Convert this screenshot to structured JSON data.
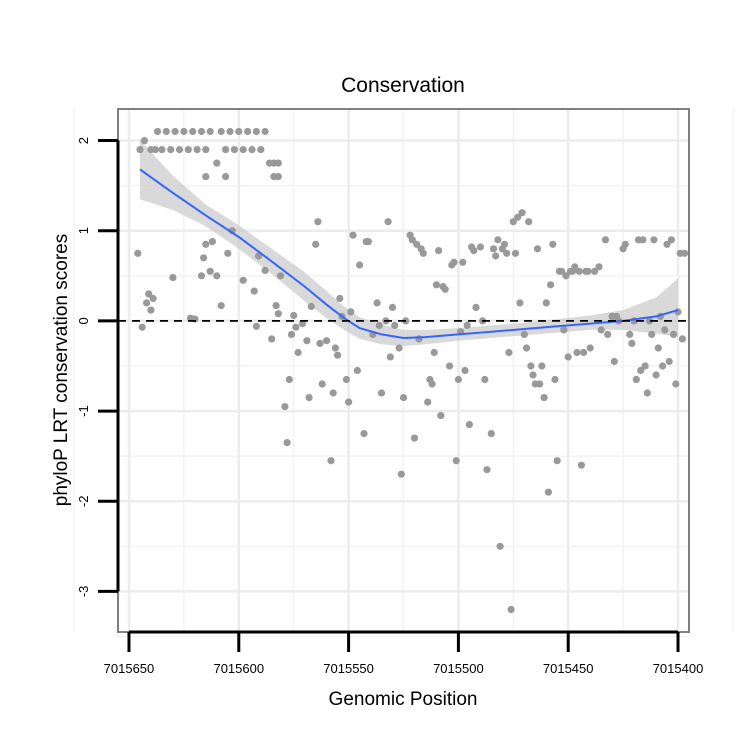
{
  "chart_data": {
    "type": "scatter",
    "title": "Conservation",
    "xlabel": "Genomic Position",
    "ylabel": "phyloP LRT conservation scores",
    "xlim": [
      7015655,
      7015395
    ],
    "ylim": [
      -3.45,
      2.35
    ],
    "x_reversed": true,
    "xticks": [
      7015650,
      7015600,
      7015550,
      7015500,
      7015450,
      7015400
    ],
    "xtick_labels": [
      "7015650",
      "7015600",
      "7015550",
      "7015500",
      "7015450",
      "7015400"
    ],
    "yticks": [
      2,
      1,
      0,
      -1,
      -2,
      -3
    ],
    "ytick_labels": [
      "2",
      "1",
      "0",
      "-1",
      "-2",
      "-3"
    ],
    "grid": true,
    "legend": "none",
    "reference_line": {
      "y": 0,
      "style": "dashed",
      "color": "#000000"
    },
    "points_color": "#999999",
    "smooth_color": "#3366FF",
    "band_color": "#cccccc",
    "points": [
      [
        7015645,
        1.9
      ],
      [
        7015643,
        2.0
      ],
      [
        7015640,
        1.9
      ],
      [
        7015638,
        1.9
      ],
      [
        7015637,
        2.1
      ],
      [
        7015635,
        1.9
      ],
      [
        7015633,
        2.1
      ],
      [
        7015631,
        1.9
      ],
      [
        7015629,
        2.1
      ],
      [
        7015627,
        1.9
      ],
      [
        7015625,
        2.1
      ],
      [
        7015623,
        1.9
      ],
      [
        7015621,
        2.1
      ],
      [
        7015619,
        1.9
      ],
      [
        7015617,
        2.1
      ],
      [
        7015615,
        1.9
      ],
      [
        7015613,
        2.1
      ],
      [
        7015608,
        2.1
      ],
      [
        7015606,
        1.9
      ],
      [
        7015604,
        2.1
      ],
      [
        7015602,
        1.9
      ],
      [
        7015600,
        2.1
      ],
      [
        7015598,
        1.9
      ],
      [
        7015596,
        2.1
      ],
      [
        7015594,
        1.9
      ],
      [
        7015592,
        2.1
      ],
      [
        7015590,
        1.9
      ],
      [
        7015588,
        2.1
      ],
      [
        7015586,
        1.75
      ],
      [
        7015584,
        1.75
      ],
      [
        7015582,
        1.75
      ],
      [
        7015610,
        1.75
      ],
      [
        7015584,
        1.6
      ],
      [
        7015582,
        1.6
      ],
      [
        7015606,
        1.6
      ],
      [
        7015615,
        1.6
      ],
      [
        7015646,
        0.75
      ],
      [
        7015644,
        -0.07
      ],
      [
        7015642,
        0.2
      ],
      [
        7015641,
        0.3
      ],
      [
        7015640,
        0.12
      ],
      [
        7015639,
        0.25
      ],
      [
        7015630,
        0.48
      ],
      [
        7015622,
        0.03
      ],
      [
        7015620,
        0.02
      ],
      [
        7015617,
        0.5
      ],
      [
        7015616,
        0.7
      ],
      [
        7015615,
        0.85
      ],
      [
        7015613,
        0.55
      ],
      [
        7015612,
        0.88
      ],
      [
        7015610,
        0.5
      ],
      [
        7015608,
        0.17
      ],
      [
        7015605,
        0.75
      ],
      [
        7015603,
        1.0
      ],
      [
        7015598,
        0.45
      ],
      [
        7015593,
        0.33
      ],
      [
        7015592,
        -0.06
      ],
      [
        7015591,
        0.72
      ],
      [
        7015588,
        0.56
      ],
      [
        7015585,
        -0.2
      ],
      [
        7015583,
        0.17
      ],
      [
        7015582,
        0.08
      ],
      [
        7015581,
        0.5
      ],
      [
        7015579,
        -0.95
      ],
      [
        7015578,
        -1.35
      ],
      [
        7015577,
        -0.65
      ],
      [
        7015576,
        -0.15
      ],
      [
        7015575,
        0.06
      ],
      [
        7015574,
        -0.07
      ],
      [
        7015573,
        -0.35
      ],
      [
        7015571,
        -0.03
      ],
      [
        7015569,
        -0.22
      ],
      [
        7015568,
        -0.85
      ],
      [
        7015567,
        0.16
      ],
      [
        7015565,
        0.85
      ],
      [
        7015564,
        1.1
      ],
      [
        7015563,
        -0.25
      ],
      [
        7015562,
        -0.7
      ],
      [
        7015560,
        -0.22
      ],
      [
        7015558,
        -1.55
      ],
      [
        7015557,
        -0.8
      ],
      [
        7015556,
        -0.3
      ],
      [
        7015555,
        -0.38
      ],
      [
        7015554,
        0.25
      ],
      [
        7015553,
        0.05
      ],
      [
        7015551,
        -0.65
      ],
      [
        7015550,
        -0.9
      ],
      [
        7015549,
        0.1
      ],
      [
        7015548,
        0.95
      ],
      [
        7015546,
        -0.55
      ],
      [
        7015545,
        0.62
      ],
      [
        7015543,
        -1.25
      ],
      [
        7015542,
        0.88
      ],
      [
        7015541,
        0.88
      ],
      [
        7015539,
        -0.15
      ],
      [
        7015537,
        0.2
      ],
      [
        7015536,
        -0.05
      ],
      [
        7015535,
        -0.8
      ],
      [
        7015533,
        0.0
      ],
      [
        7015532,
        1.1
      ],
      [
        7015531,
        -0.4
      ],
      [
        7015530,
        0.15
      ],
      [
        7015529,
        -0.05
      ],
      [
        7015527,
        -0.3
      ],
      [
        7015526,
        -1.7
      ],
      [
        7015525,
        -0.85
      ],
      [
        7015524,
        0.0
      ],
      [
        7015522,
        0.95
      ],
      [
        7015521,
        0.9
      ],
      [
        7015520,
        -1.3
      ],
      [
        7015519,
        0.85
      ],
      [
        7015518,
        -0.2
      ],
      [
        7015517,
        0.8
      ],
      [
        7015516,
        0.75
      ],
      [
        7015514,
        -0.9
      ],
      [
        7015513,
        -0.65
      ],
      [
        7015512,
        -0.7
      ],
      [
        7015511,
        -0.35
      ],
      [
        7015510,
        0.4
      ],
      [
        7015509,
        0.78
      ],
      [
        7015508,
        -1.05
      ],
      [
        7015507,
        0.38
      ],
      [
        7015506,
        0.35
      ],
      [
        7015504,
        -0.5
      ],
      [
        7015503,
        0.62
      ],
      [
        7015502,
        0.65
      ],
      [
        7015501,
        -1.55
      ],
      [
        7015500,
        -0.65
      ],
      [
        7015499,
        -0.12
      ],
      [
        7015498,
        0.65
      ],
      [
        7015497,
        -0.55
      ],
      [
        7015496,
        -0.05
      ],
      [
        7015495,
        -1.15
      ],
      [
        7015494,
        0.82
      ],
      [
        7015493,
        0.78
      ],
      [
        7015492,
        0.15
      ],
      [
        7015490,
        0.82
      ],
      [
        7015489,
        0.0
      ],
      [
        7015488,
        -0.65
      ],
      [
        7015487,
        -1.65
      ],
      [
        7015485,
        -1.25
      ],
      [
        7015484,
        0.8
      ],
      [
        7015483,
        0.72
      ],
      [
        7015482,
        0.9
      ],
      [
        7015481,
        -2.5
      ],
      [
        7015480,
        0.8
      ],
      [
        7015479,
        0.85
      ],
      [
        7015478,
        0.75
      ],
      [
        7015477,
        -0.35
      ],
      [
        7015476,
        -3.2
      ],
      [
        7015475,
        1.1
      ],
      [
        7015474,
        0.75
      ],
      [
        7015473,
        1.15
      ],
      [
        7015472,
        0.2
      ],
      [
        7015471,
        1.2
      ],
      [
        7015470,
        -0.15
      ],
      [
        7015469,
        -0.3
      ],
      [
        7015468,
        1.1
      ],
      [
        7015467,
        -0.5
      ],
      [
        7015466,
        -0.6
      ],
      [
        7015465,
        -0.7
      ],
      [
        7015464,
        0.8
      ],
      [
        7015463,
        -0.7
      ],
      [
        7015462,
        -0.5
      ],
      [
        7015461,
        -0.85
      ],
      [
        7015460,
        0.2
      ],
      [
        7015459,
        -1.9
      ],
      [
        7015458,
        0.4
      ],
      [
        7015457,
        0.85
      ],
      [
        7015456,
        -0.65
      ],
      [
        7015455,
        -1.55
      ],
      [
        7015454,
        0.55
      ],
      [
        7015453,
        0.55
      ],
      [
        7015452,
        -0.1
      ],
      [
        7015451,
        0.5
      ],
      [
        7015450,
        -0.4
      ],
      [
        7015449,
        0.55
      ],
      [
        7015448,
        0.55
      ],
      [
        7015447,
        0.6
      ],
      [
        7015446,
        -0.35
      ],
      [
        7015445,
        0.55
      ],
      [
        7015444,
        -1.6
      ],
      [
        7015443,
        -0.35
      ],
      [
        7015442,
        0.55
      ],
      [
        7015441,
        0.55
      ],
      [
        7015440,
        -0.3
      ],
      [
        7015438,
        0.55
      ],
      [
        7015436,
        0.6
      ],
      [
        7015435,
        -0.1
      ],
      [
        7015433,
        0.9
      ],
      [
        7015432,
        -0.15
      ],
      [
        7015430,
        0.05
      ],
      [
        7015429,
        -0.45
      ],
      [
        7015428,
        0.05
      ],
      [
        7015427,
        0.0
      ],
      [
        7015425,
        0.8
      ],
      [
        7015424,
        0.85
      ],
      [
        7015422,
        -0.15
      ],
      [
        7015421,
        -0.25
      ],
      [
        7015420,
        0.0
      ],
      [
        7015419,
        -0.65
      ],
      [
        7015418,
        0.9
      ],
      [
        7015417,
        -0.55
      ],
      [
        7015416,
        0.9
      ],
      [
        7015415,
        -0.5
      ],
      [
        7015414,
        -0.8
      ],
      [
        7015413,
        0.0
      ],
      [
        7015412,
        -0.15
      ],
      [
        7015411,
        0.9
      ],
      [
        7015410,
        -0.6
      ],
      [
        7015409,
        -0.3
      ],
      [
        7015408,
        0.05
      ],
      [
        7015407,
        -0.5
      ],
      [
        7015406,
        -0.1
      ],
      [
        7015405,
        0.85
      ],
      [
        7015404,
        -0.45
      ],
      [
        7015403,
        0.9
      ],
      [
        7015402,
        -0.15
      ],
      [
        7015401,
        -0.7
      ],
      [
        7015400,
        0.1
      ],
      [
        7015399,
        0.75
      ],
      [
        7015398,
        -0.2
      ],
      [
        7015397,
        0.75
      ]
    ],
    "smooth": {
      "x": [
        7015645,
        7015630,
        7015615,
        7015600,
        7015585,
        7015570,
        7015560,
        7015552,
        7015545,
        7015535,
        7015525,
        7015515,
        7015500,
        7015485,
        7015470,
        7015455,
        7015440,
        7015425,
        7015410,
        7015400
      ],
      "y": [
        1.68,
        1.42,
        1.17,
        0.93,
        0.66,
        0.38,
        0.18,
        0.03,
        -0.08,
        -0.15,
        -0.19,
        -0.18,
        -0.15,
        -0.12,
        -0.09,
        -0.06,
        -0.03,
        0.0,
        0.05,
        0.12
      ],
      "lower": [
        1.35,
        1.23,
        1.05,
        0.8,
        0.52,
        0.22,
        0.03,
        -0.1,
        -0.2,
        -0.26,
        -0.28,
        -0.26,
        -0.22,
        -0.19,
        -0.16,
        -0.13,
        -0.1,
        -0.1,
        -0.14,
        -0.18
      ],
      "upper": [
        2.01,
        1.61,
        1.29,
        1.06,
        0.8,
        0.54,
        0.33,
        0.16,
        0.04,
        -0.04,
        -0.1,
        -0.1,
        -0.08,
        -0.05,
        -0.02,
        0.02,
        0.06,
        0.12,
        0.26,
        0.47
      ]
    }
  }
}
